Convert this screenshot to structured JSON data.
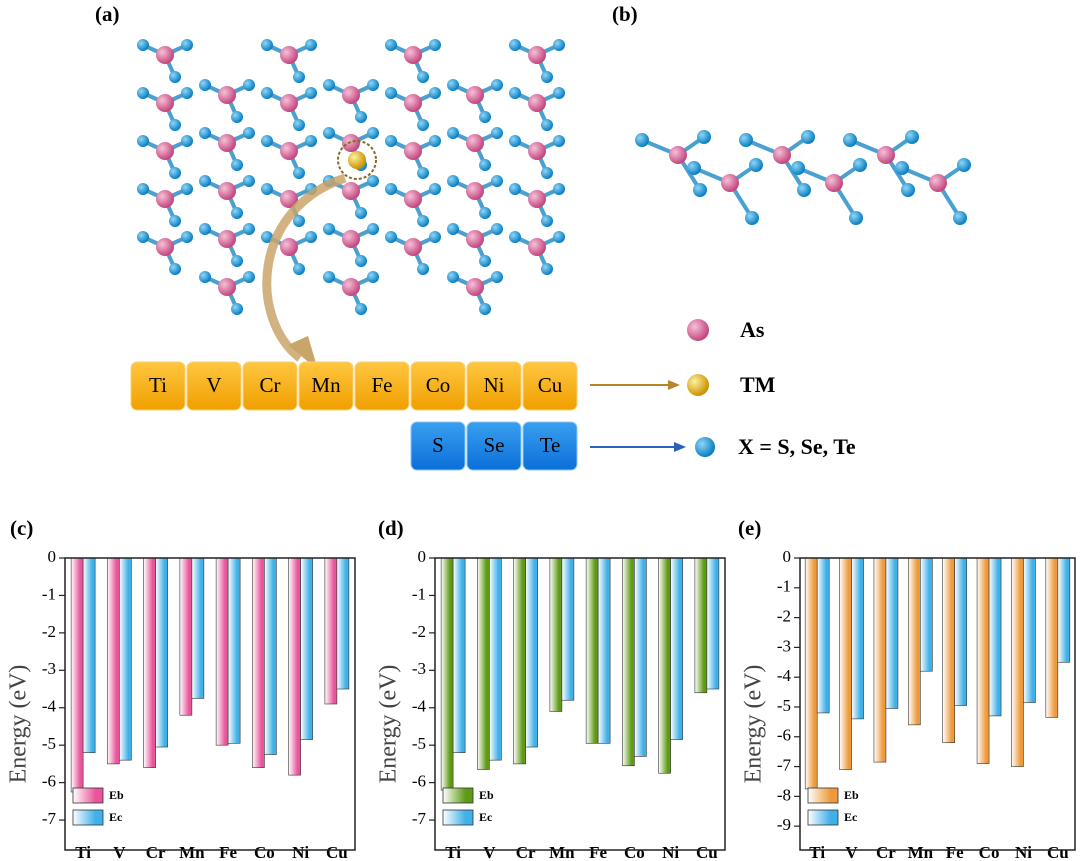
{
  "panels": {
    "a": "(a)",
    "b": "(b)"
  },
  "tm_elements": [
    "Ti",
    "V",
    "Cr",
    "Mn",
    "Fe",
    "Co",
    "Ni",
    "Cu"
  ],
  "x_elements": [
    "S",
    "Se",
    "Te"
  ],
  "legend": {
    "as": "As",
    "tm": "TM",
    "x": "X = S, Se, Te"
  },
  "chart_data": [
    {
      "type": "bar",
      "title": "(c)",
      "y_label": "Energy (eV)",
      "categories": [
        "Ti",
        "V",
        "Cr",
        "Mn",
        "Fe",
        "Co",
        "Ni",
        "Cu"
      ],
      "series": [
        {
          "name": "Eb",
          "color": "#e8559a",
          "values": [
            -6.25,
            -5.5,
            -5.6,
            -4.2,
            -5.0,
            -5.6,
            -5.8,
            -3.9
          ]
        },
        {
          "name": "Ec",
          "color": "#3fb0e8",
          "values": [
            -5.2,
            -5.4,
            -5.05,
            -3.75,
            -4.95,
            -5.25,
            -4.85,
            -3.5
          ]
        }
      ],
      "ylim": [
        -7.8,
        0
      ],
      "yticks": [
        0,
        -1,
        -2,
        -3,
        -4,
        -5,
        -6,
        -7
      ],
      "legend": "lower left"
    },
    {
      "type": "bar",
      "title": "(d)",
      "y_label": "Energy (eV)",
      "categories": [
        "Ti",
        "V",
        "Cr",
        "Mn",
        "Fe",
        "Co",
        "Ni",
        "Cu"
      ],
      "series": [
        {
          "name": "Eb",
          "color": "#5f9a16",
          "values": [
            -6.2,
            -5.65,
            -5.5,
            -4.1,
            -4.95,
            -5.55,
            -5.75,
            -3.6
          ]
        },
        {
          "name": "Ec",
          "color": "#3fb0e8",
          "values": [
            -5.2,
            -5.4,
            -5.05,
            -3.8,
            -4.95,
            -5.3,
            -4.85,
            -3.5
          ]
        }
      ],
      "ylim": [
        -7.8,
        0
      ],
      "yticks": [
        0,
        -1,
        -2,
        -3,
        -4,
        -5,
        -6,
        -7
      ],
      "legend": "lower left"
    },
    {
      "type": "bar",
      "title": "(e)",
      "y_label": "Energy (eV)",
      "categories": [
        "Ti",
        "V",
        "Cr",
        "Mn",
        "Fe",
        "Co",
        "Ni",
        "Cu"
      ],
      "series": [
        {
          "name": "Eb",
          "color": "#ee9a3c",
          "values": [
            -7.75,
            -7.1,
            -6.85,
            -5.6,
            -6.2,
            -6.9,
            -7.0,
            -5.35
          ]
        },
        {
          "name": "Ec",
          "color": "#3fb0e8",
          "values": [
            -5.2,
            -5.4,
            -5.05,
            -3.8,
            -4.95,
            -5.3,
            -4.85,
            -3.5
          ]
        }
      ],
      "ylim": [
        -9.8,
        0
      ],
      "yticks": [
        0,
        -1,
        -2,
        -3,
        -4,
        -5,
        -6,
        -7,
        -8,
        -9
      ],
      "legend": "lower left"
    }
  ]
}
